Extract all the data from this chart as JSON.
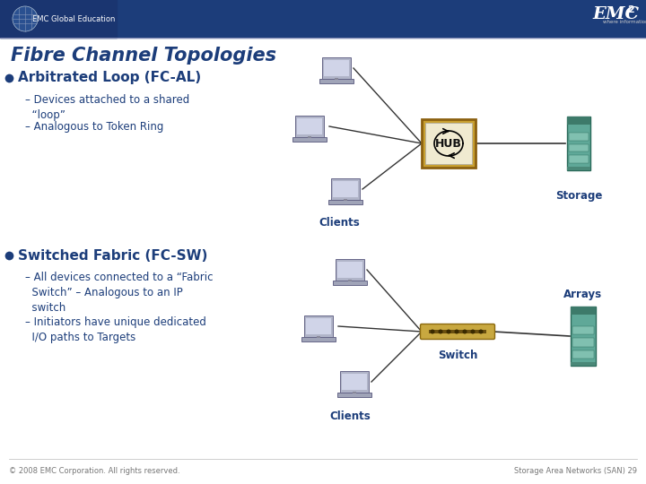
{
  "title": "Fibre Channel Topologies",
  "header_bg": "#1c3d7a",
  "body_bg": "#ffffff",
  "title_color": "#1c3d7a",
  "bullet_color": "#1c3d7a",
  "text_color": "#1c3d7a",
  "bullet1_title": "Arbitrated Loop (FC-AL)",
  "bullet1_sub1": "– Devices attached to a shared\n  “loop”",
  "bullet1_sub2": "– Analogous to Token Ring",
  "bullet2_title": "Switched Fabric (FC-SW)",
  "bullet2_sub1": "– All devices connected to a “Fabric\n  Switch” – Analogous to an IP\n  switch",
  "bullet2_sub2": "– Initiators have unique dedicated\n  I/O paths to Targets",
  "clients_label": "Clients",
  "storage_label": "Storage",
  "hub_label": "HUB",
  "switch_label": "Switch",
  "arrays_label": "Arrays",
  "footer_left": "© 2008 EMC Corporation. All rights reserved.",
  "footer_right": "Storage Area Networks (SAN) 29",
  "emc_text": "EMC",
  "emc_sup": "2",
  "emc_sub": "where information lives®",
  "emc_global": "EMC Global Education",
  "laptop_screen_color": "#b0b4c8",
  "laptop_screen_dark": "#8890a8",
  "laptop_base_color": "#a0a4b8",
  "storage_body": "#5fa898",
  "storage_top": "#3d7a6a",
  "storage_shelf": "#80c0b0",
  "storage_border": "#2a6a5a",
  "hub_outer": "#c8a030",
  "hub_border": "#8b6010",
  "hub_inner": "#e0c870",
  "switch_color": "#c8a840",
  "switch_border": "#8b6a10",
  "line_color": "#333333"
}
